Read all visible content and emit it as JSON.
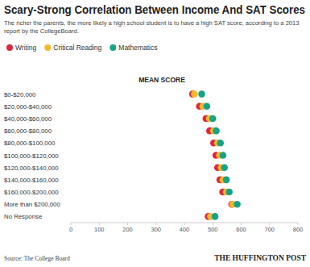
{
  "chart_data": {
    "type": "dot",
    "title": "Scary-Strong Correlation Between Income And SAT Scores",
    "subtitle": "The richer the parents, the more likely a high school student is to have a high SAT score, according to a 2013 report by the CollegeBoard.",
    "x_label": "MEAN SCORE",
    "source": "Source: The College Board",
    "publisher": "THE HUFFINGTON POST",
    "orientation": "horizontal",
    "categories": [
      "$0-$20,000",
      "$20,000-$40,000",
      "$40,000-$60,000",
      "$60,000-$80,000",
      "$80,000-$100,000",
      "$100,000-$120,000",
      "$120,000-$140,000",
      "$140,000-$160,000",
      "$160,000-$200,000",
      "More than $200,000",
      "No Response"
    ],
    "series": [
      {
        "name": "Writing",
        "color": "#e0263b",
        "values": [
          429,
          453,
          476,
          489,
          503,
          511,
          517,
          525,
          535,
          567,
          484
        ]
      },
      {
        "name": "Critical Reading",
        "color": "#f4b929",
        "values": [
          435,
          465,
          488,
          503,
          517,
          524,
          530,
          536,
          547,
          570,
          492
        ]
      },
      {
        "name": "Mathematics",
        "color": "#16a386",
        "values": [
          461,
          479,
          500,
          512,
          527,
          536,
          541,
          548,
          558,
          586,
          508
        ]
      }
    ],
    "xlim": [
      0,
      800
    ],
    "xticks": [
      0,
      100,
      200,
      300,
      400,
      500,
      600,
      700,
      800
    ],
    "grid": false,
    "legend": "top"
  }
}
